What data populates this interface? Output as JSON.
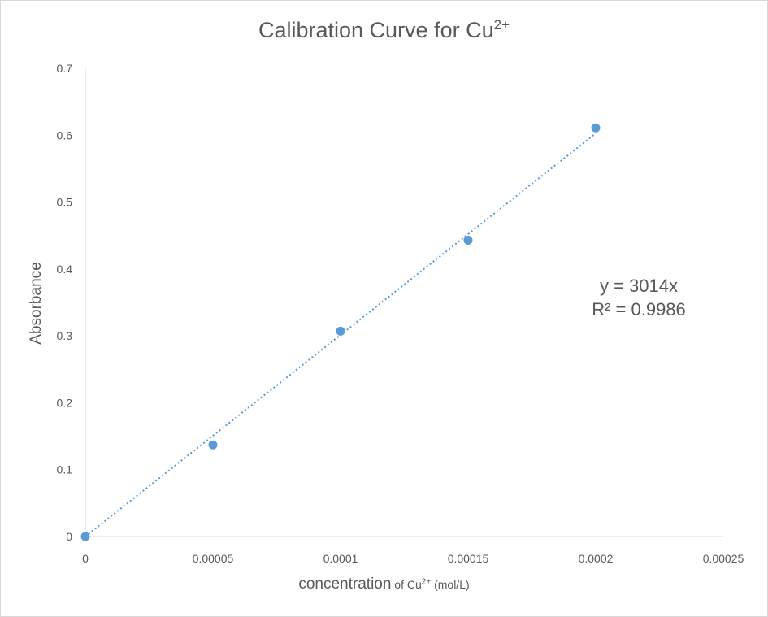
{
  "chart_data": {
    "type": "scatter",
    "title": {
      "text": "Calibration Curve for Cu",
      "superscript": "2+"
    },
    "xlabel": {
      "main": "concentration",
      "suffix": " of Cu",
      "superscript": "2+",
      "unit": " (mol/L)"
    },
    "ylabel": "Absorbance",
    "xlim": [
      0,
      0.00025
    ],
    "ylim": [
      0,
      0.7
    ],
    "x_ticks": [
      "0",
      "0.00005",
      "0.0001",
      "0.00015",
      "0.0002",
      "0.00025"
    ],
    "y_ticks": [
      "0",
      "0.1",
      "0.2",
      "0.3",
      "0.4",
      "0.5",
      "0.6",
      "0.7"
    ],
    "grid": false,
    "legend": "none",
    "series": [
      {
        "x": [
          0,
          5e-05,
          0.0001,
          0.00015,
          0.0002
        ],
        "y": [
          0,
          0.137,
          0.307,
          0.443,
          0.611
        ],
        "color": "#5b9bd5"
      }
    ],
    "trendline": {
      "type": "linear",
      "slope": 3014,
      "intercept": 0,
      "style": "dotted",
      "color": "#5b9bd5"
    },
    "annotations": {
      "equation": "y = 3014x",
      "r_squared": "R² = 0.9986"
    }
  }
}
